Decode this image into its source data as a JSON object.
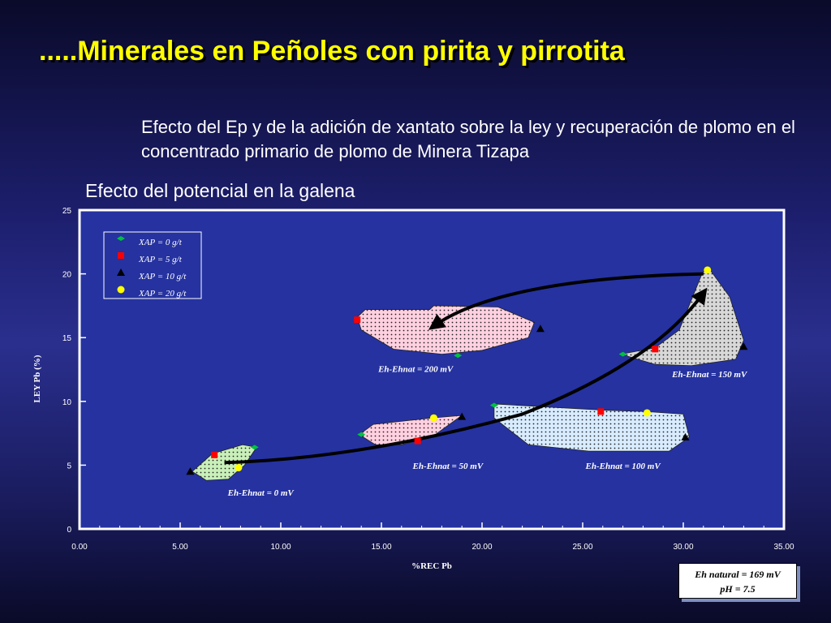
{
  "slide": {
    "title": ".....Minerales en Peñoles con pirita y pirrotita",
    "subtitle": "Efecto del Ep y de la adición de xantato sobre la ley y recuperación de plomo en el concentrado primario de plomo de Minera Tizapa",
    "chart_title": "Efecto del potencial en la galena"
  },
  "note": {
    "line1": "Eh natural = 169 mV",
    "line2": "pH = 7.5"
  },
  "chart_data": {
    "type": "scatter",
    "title": "Efecto del potencial en la galena",
    "xlabel": "%REC Pb",
    "ylabel": "LEY Pb (%)",
    "xlim": [
      0,
      35
    ],
    "ylim": [
      0,
      25
    ],
    "xticks": [
      "0.00",
      "5.00",
      "10.00",
      "15.00",
      "20.00",
      "25.00",
      "30.00",
      "35.00"
    ],
    "yticks": [
      "0",
      "5",
      "10",
      "15",
      "20",
      "25"
    ],
    "grid": false,
    "legend_position": "top-left",
    "series": [
      {
        "name": "XAP = 0 g/t",
        "marker": "diamond",
        "color": "#00c040",
        "points": [
          [
            8.7,
            6.4
          ],
          [
            14.0,
            7.4
          ],
          [
            20.6,
            9.7
          ],
          [
            18.8,
            13.6
          ],
          [
            27.0,
            13.7
          ]
        ]
      },
      {
        "name": "XAP = 5 g/t",
        "marker": "square",
        "color": "#ff0000",
        "points": [
          [
            6.7,
            5.8
          ],
          [
            16.8,
            6.9
          ],
          [
            25.9,
            9.2
          ],
          [
            13.8,
            16.4
          ],
          [
            28.6,
            14.1
          ]
        ]
      },
      {
        "name": "XAP = 10 g/t",
        "marker": "triangle",
        "color": "#000000",
        "points": [
          [
            5.5,
            4.5
          ],
          [
            19.0,
            8.8
          ],
          [
            30.1,
            7.2
          ],
          [
            22.9,
            15.7
          ],
          [
            33.0,
            14.3
          ]
        ]
      },
      {
        "name": "XAP = 20 g/t",
        "marker": "circle",
        "color": "#ffff00",
        "points": [
          [
            7.9,
            4.8
          ],
          [
            17.6,
            8.7
          ],
          [
            28.2,
            9.1
          ],
          [
            31.2,
            20.3
          ]
        ]
      }
    ],
    "regions": [
      {
        "label": "Eh-Ehnat = 0 mV",
        "color": "#c8f0b8",
        "label_at": [
          9.0,
          2.6
        ],
        "outline": [
          [
            5.6,
            4.5
          ],
          [
            6.6,
            5.9
          ],
          [
            8.1,
            6.6
          ],
          [
            8.8,
            6.4
          ],
          [
            8.2,
            5.0
          ],
          [
            7.4,
            3.9
          ],
          [
            6.3,
            3.8
          ]
        ]
      },
      {
        "label": "Eh-Ehnat = 50 mV",
        "color": "#ffd0e0",
        "label_at": [
          18.3,
          4.7
        ],
        "outline": [
          [
            13.9,
            7.4
          ],
          [
            14.6,
            8.2
          ],
          [
            17.5,
            8.7
          ],
          [
            19.0,
            8.9
          ],
          [
            17.5,
            7.2
          ],
          [
            16.0,
            6.6
          ],
          [
            14.7,
            6.6
          ]
        ]
      },
      {
        "label": "Eh-Ehnat = 100 mV",
        "color": "#d8ecff",
        "label_at": [
          27.0,
          4.7
        ],
        "outline": [
          [
            20.6,
            9.8
          ],
          [
            26.2,
            9.3
          ],
          [
            28.2,
            9.2
          ],
          [
            30.0,
            9.0
          ],
          [
            30.3,
            7.2
          ],
          [
            29.3,
            6.1
          ],
          [
            25.3,
            6.1
          ],
          [
            22.3,
            6.6
          ],
          [
            20.6,
            8.7
          ]
        ]
      },
      {
        "label": "Eh-Ehnat = 200 mV",
        "color": "#ffd0e0",
        "label_at": [
          16.7,
          12.3
        ],
        "outline": [
          [
            13.8,
            16.6
          ],
          [
            14.2,
            17.2
          ],
          [
            17.4,
            17.2
          ],
          [
            17.6,
            17.5
          ],
          [
            20.8,
            17.4
          ],
          [
            22.6,
            16.2
          ],
          [
            22.3,
            15.0
          ],
          [
            20.0,
            14.0
          ],
          [
            18.0,
            13.7
          ],
          [
            15.6,
            14.1
          ],
          [
            14.0,
            15.6
          ]
        ]
      },
      {
        "label": "Eh-Ehnat = 150 mV",
        "color": "#d8d8d8",
        "label_at": [
          31.3,
          11.9
        ],
        "outline": [
          [
            26.9,
            13.7
          ],
          [
            28.6,
            14.2
          ],
          [
            29.8,
            15.6
          ],
          [
            30.9,
            19.9
          ],
          [
            31.2,
            20.6
          ],
          [
            32.3,
            18.2
          ],
          [
            33.0,
            14.8
          ],
          [
            32.6,
            13.3
          ],
          [
            30.4,
            12.8
          ],
          [
            28.6,
            12.9
          ]
        ]
      }
    ],
    "annotations": [
      {
        "type": "arrow",
        "path": [
          [
            7.2,
            5.2
          ],
          [
            14.0,
            5.5
          ],
          [
            22.0,
            9.0
          ],
          [
            28.5,
            13.0
          ],
          [
            31.0,
            18.5
          ]
        ]
      },
      {
        "type": "arrow",
        "path": [
          [
            31.0,
            20.0
          ],
          [
            25.0,
            19.8
          ],
          [
            20.0,
            18.6
          ],
          [
            17.6,
            15.9
          ]
        ]
      }
    ]
  }
}
